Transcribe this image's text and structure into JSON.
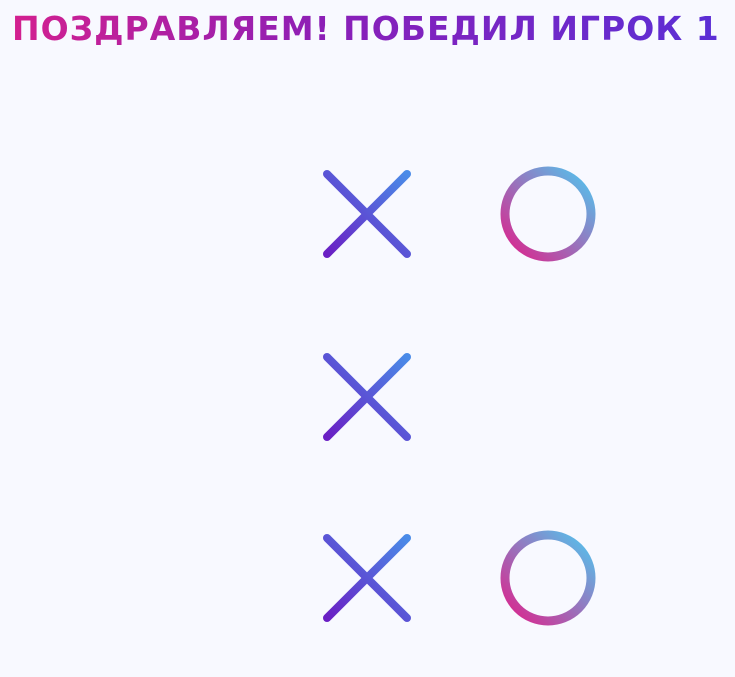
{
  "title": "ПОЗДРАВЛЯЕМ! ПОБЕДИЛ ИГРОК 1",
  "board": {
    "rows": [
      [
        "",
        "X",
        "O"
      ],
      [
        "",
        "X",
        ""
      ],
      [
        "",
        "X",
        "O"
      ]
    ],
    "winning_line": {
      "type": "column",
      "index": 1
    }
  },
  "colors": {
    "title_start": "#d3208f",
    "title_end": "#5a2fd6",
    "grid_start": "#6a1fc4",
    "grid_end": "#4a56df",
    "x_start": "#6a1fc4",
    "x_end": "#4a8be8",
    "o_start": "#4fc8f0",
    "o_end": "#e0208a",
    "win_start": "#e0208a",
    "win_end": "#4030c8"
  },
  "icons": {
    "x_mark": "x-mark-icon",
    "o_mark": "o-mark-icon",
    "win_line": "win-line"
  }
}
